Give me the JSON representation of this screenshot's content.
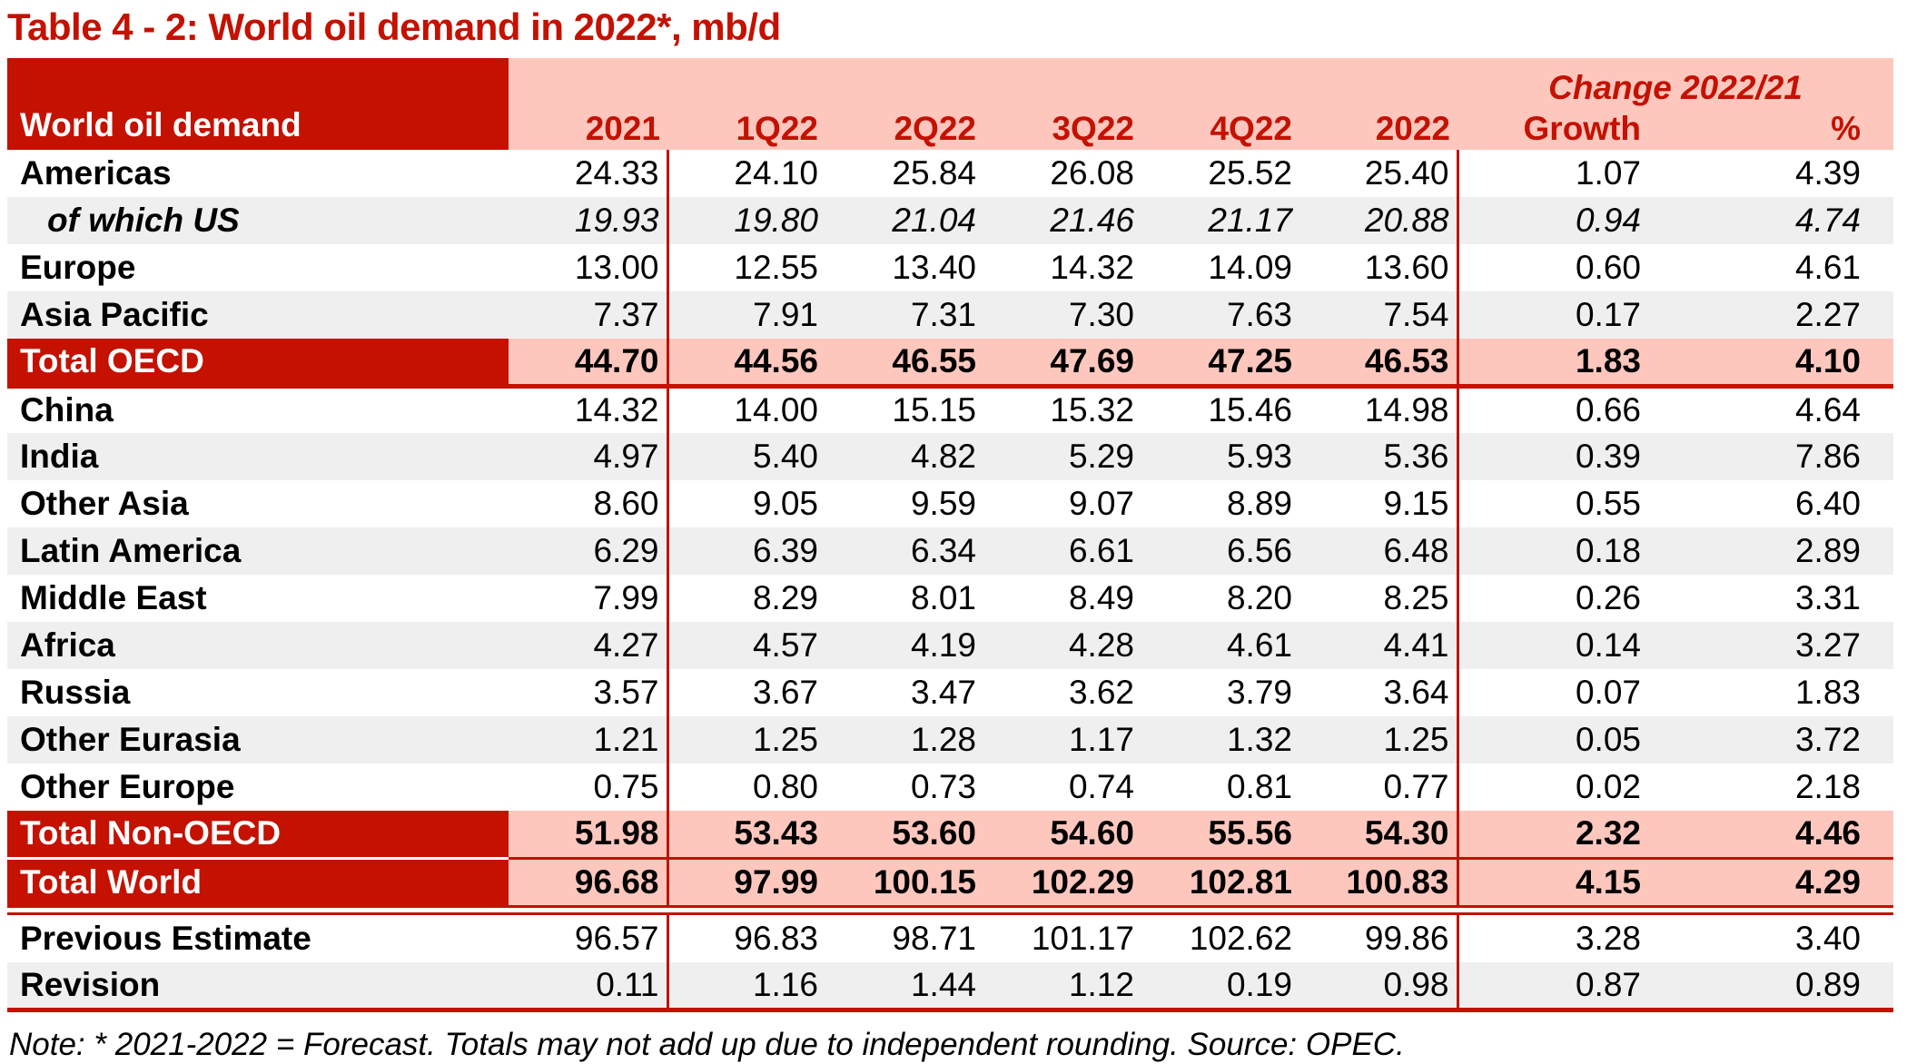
{
  "title": "Table 4 - 2: World oil demand in 2022*, mb/d",
  "table": {
    "corner_label": "World oil demand",
    "change_header": "Change 2022/21",
    "columns": [
      "2021",
      "1Q22",
      "2Q22",
      "3Q22",
      "4Q22",
      "2022",
      "Growth",
      "%"
    ],
    "rows": [
      {
        "label": "Americas",
        "kind": "normal",
        "values": [
          "24.33",
          "24.10",
          "25.84",
          "26.08",
          "25.52",
          "25.40",
          "1.07",
          "4.39"
        ]
      },
      {
        "label": "of which US",
        "kind": "sub",
        "values": [
          "19.93",
          "19.80",
          "21.04",
          "21.46",
          "21.17",
          "20.88",
          "0.94",
          "4.74"
        ]
      },
      {
        "label": "Europe",
        "kind": "normal",
        "values": [
          "13.00",
          "12.55",
          "13.40",
          "14.32",
          "14.09",
          "13.60",
          "0.60",
          "4.61"
        ]
      },
      {
        "label": "Asia Pacific",
        "kind": "normal",
        "values": [
          "7.37",
          "7.91",
          "7.31",
          "7.30",
          "7.63",
          "7.54",
          "0.17",
          "2.27"
        ]
      },
      {
        "label": "Total OECD",
        "kind": "total",
        "sep_after": "thick",
        "values": [
          "44.70",
          "44.56",
          "46.55",
          "47.69",
          "47.25",
          "46.53",
          "1.83",
          "4.10"
        ]
      },
      {
        "label": "China",
        "kind": "normal",
        "values": [
          "14.32",
          "14.00",
          "15.15",
          "15.32",
          "15.46",
          "14.98",
          "0.66",
          "4.64"
        ]
      },
      {
        "label": "India",
        "kind": "normal",
        "values": [
          "4.97",
          "5.40",
          "4.82",
          "5.29",
          "5.93",
          "5.36",
          "0.39",
          "7.86"
        ]
      },
      {
        "label": "Other Asia",
        "kind": "normal",
        "values": [
          "8.60",
          "9.05",
          "9.59",
          "9.07",
          "8.89",
          "9.15",
          "0.55",
          "6.40"
        ]
      },
      {
        "label": "Latin America",
        "kind": "normal",
        "values": [
          "6.29",
          "6.39",
          "6.34",
          "6.61",
          "6.56",
          "6.48",
          "0.18",
          "2.89"
        ]
      },
      {
        "label": "Middle East",
        "kind": "normal",
        "values": [
          "7.99",
          "8.29",
          "8.01",
          "8.49",
          "8.20",
          "8.25",
          "0.26",
          "3.31"
        ]
      },
      {
        "label": "Africa",
        "kind": "normal",
        "values": [
          "4.27",
          "4.57",
          "4.19",
          "4.28",
          "4.61",
          "4.41",
          "0.14",
          "3.27"
        ]
      },
      {
        "label": "Russia",
        "kind": "normal",
        "values": [
          "3.57",
          "3.67",
          "3.47",
          "3.62",
          "3.79",
          "3.64",
          "0.07",
          "1.83"
        ]
      },
      {
        "label": "Other Eurasia",
        "kind": "normal",
        "values": [
          "1.21",
          "1.25",
          "1.28",
          "1.17",
          "1.32",
          "1.25",
          "0.05",
          "3.72"
        ]
      },
      {
        "label": "Other Europe",
        "kind": "normal",
        "values": [
          "0.75",
          "0.80",
          "0.73",
          "0.74",
          "0.81",
          "0.77",
          "0.02",
          "2.18"
        ]
      },
      {
        "label": "Total Non-OECD",
        "kind": "total",
        "sep_after": "thin",
        "values": [
          "51.98",
          "53.43",
          "53.60",
          "54.60",
          "55.56",
          "54.30",
          "2.32",
          "4.46"
        ]
      },
      {
        "label": "Total World",
        "kind": "total",
        "sep_after": "double",
        "values": [
          "96.68",
          "97.99",
          "100.15",
          "102.29",
          "102.81",
          "100.83",
          "4.15",
          "4.29"
        ]
      },
      {
        "label": "Previous Estimate",
        "kind": "normal",
        "values": [
          "96.57",
          "96.83",
          "98.71",
          "101.17",
          "102.62",
          "99.86",
          "3.28",
          "3.40"
        ]
      },
      {
        "label": "Revision",
        "kind": "normal",
        "values": [
          "0.11",
          "1.16",
          "1.44",
          "1.12",
          "0.19",
          "0.98",
          "0.87",
          "0.89"
        ]
      }
    ]
  },
  "note": "Note: * 2021-2022 = Forecast. Totals may not add up due to independent rounding. Source: OPEC.",
  "colors": {
    "accent_red": "#C41100",
    "pink": "#FDC7BE",
    "stripe_gray": "#EFEFEF"
  }
}
